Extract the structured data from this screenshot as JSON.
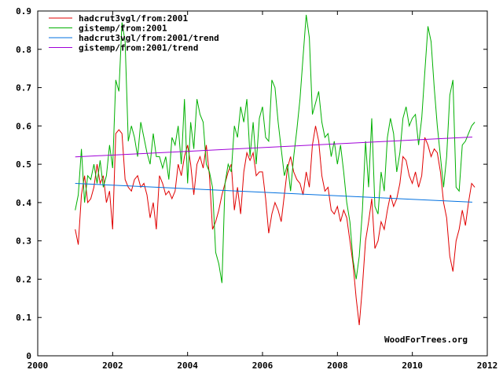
{
  "chart_data": {
    "type": "line",
    "title": "",
    "xlabel": "",
    "ylabel": "",
    "xlim": [
      2000,
      2012
    ],
    "ylim": [
      0,
      0.9
    ],
    "x_ticks": [
      "2000",
      "2002",
      "2004",
      "2006",
      "2008",
      "2010",
      "2012"
    ],
    "x_tick_values": [
      2000,
      2002,
      2004,
      2006,
      2008,
      2010,
      2012
    ],
    "y_ticks": [
      "0",
      "0.1",
      "0.2",
      "0.3",
      "0.4",
      "0.5",
      "0.6",
      "0.7",
      "0.8",
      "0.9"
    ],
    "y_tick_values": [
      0,
      0.1,
      0.2,
      0.3,
      0.4,
      0.5,
      0.6,
      0.7,
      0.8,
      0.9
    ],
    "grid": false,
    "legend_position": "top-left",
    "credit": "WoodForTrees.org",
    "x_start": 2001.0,
    "x_step": 0.08333,
    "series": [
      {
        "name": "hadcrut3vgl/from:2001",
        "color": "#e00000",
        "values": [
          0.33,
          0.29,
          0.42,
          0.47,
          0.4,
          0.41,
          0.44,
          0.5,
          0.45,
          0.47,
          0.4,
          0.43,
          0.33,
          0.58,
          0.59,
          0.58,
          0.46,
          0.44,
          0.43,
          0.46,
          0.47,
          0.44,
          0.45,
          0.42,
          0.36,
          0.4,
          0.33,
          0.47,
          0.45,
          0.42,
          0.43,
          0.41,
          0.43,
          0.5,
          0.47,
          0.52,
          0.55,
          0.5,
          0.42,
          0.5,
          0.52,
          0.49,
          0.55,
          0.47,
          0.33,
          0.35,
          0.38,
          0.42,
          0.45,
          0.48,
          0.5,
          0.38,
          0.44,
          0.37,
          0.48,
          0.53,
          0.51,
          0.53,
          0.47,
          0.48,
          0.48,
          0.41,
          0.32,
          0.37,
          0.4,
          0.38,
          0.35,
          0.42,
          0.49,
          0.52,
          0.48,
          0.46,
          0.45,
          0.42,
          0.48,
          0.44,
          0.55,
          0.6,
          0.56,
          0.47,
          0.43,
          0.44,
          0.38,
          0.37,
          0.39,
          0.35,
          0.38,
          0.36,
          0.3,
          0.24,
          0.15,
          0.08,
          0.18,
          0.3,
          0.35,
          0.41,
          0.28,
          0.3,
          0.35,
          0.33,
          0.38,
          0.42,
          0.39,
          0.41,
          0.45,
          0.52,
          0.51,
          0.47,
          0.45,
          0.48,
          0.44,
          0.47,
          0.57,
          0.55,
          0.52,
          0.54,
          0.53,
          0.48,
          0.4,
          0.36,
          0.26,
          0.22,
          0.3,
          0.33,
          0.38,
          0.34,
          0.4,
          0.45,
          0.44
        ]
      },
      {
        "name": "gistemp/from:2001",
        "color": "#00b000",
        "values": [
          0.38,
          0.42,
          0.54,
          0.4,
          0.47,
          0.46,
          0.5,
          0.45,
          0.51,
          0.44,
          0.47,
          0.55,
          0.49,
          0.72,
          0.69,
          0.87,
          0.82,
          0.56,
          0.6,
          0.57,
          0.52,
          0.61,
          0.57,
          0.53,
          0.5,
          0.58,
          0.52,
          0.52,
          0.49,
          0.52,
          0.46,
          0.57,
          0.55,
          0.6,
          0.5,
          0.67,
          0.45,
          0.61,
          0.54,
          0.67,
          0.63,
          0.61,
          0.5,
          0.48,
          0.44,
          0.27,
          0.24,
          0.19,
          0.45,
          0.5,
          0.48,
          0.6,
          0.57,
          0.65,
          0.61,
          0.67,
          0.52,
          0.61,
          0.5,
          0.62,
          0.65,
          0.57,
          0.56,
          0.72,
          0.7,
          0.61,
          0.54,
          0.47,
          0.5,
          0.43,
          0.52,
          0.59,
          0.67,
          0.78,
          0.89,
          0.83,
          0.63,
          0.66,
          0.69,
          0.61,
          0.57,
          0.58,
          0.52,
          0.56,
          0.5,
          0.55,
          0.48,
          0.4,
          0.35,
          0.25,
          0.2,
          0.26,
          0.38,
          0.56,
          0.44,
          0.62,
          0.39,
          0.37,
          0.48,
          0.43,
          0.57,
          0.62,
          0.58,
          0.48,
          0.53,
          0.62,
          0.65,
          0.6,
          0.62,
          0.63,
          0.55,
          0.62,
          0.74,
          0.86,
          0.82,
          0.7,
          0.6,
          0.52,
          0.44,
          0.52,
          0.68,
          0.72,
          0.44,
          0.43,
          0.55,
          0.56,
          0.58,
          0.6,
          0.61
        ]
      },
      {
        "name": "hadcrut3vgl/from:2001/trend",
        "color": "#0070e0",
        "x": [
          2001.0,
          2011.6
        ],
        "values": [
          0.45,
          0.401
        ]
      },
      {
        "name": "gistemp/from:2001/trend",
        "color": "#a000d8",
        "x": [
          2001.0,
          2011.6
        ],
        "values": [
          0.519,
          0.571
        ]
      }
    ]
  }
}
